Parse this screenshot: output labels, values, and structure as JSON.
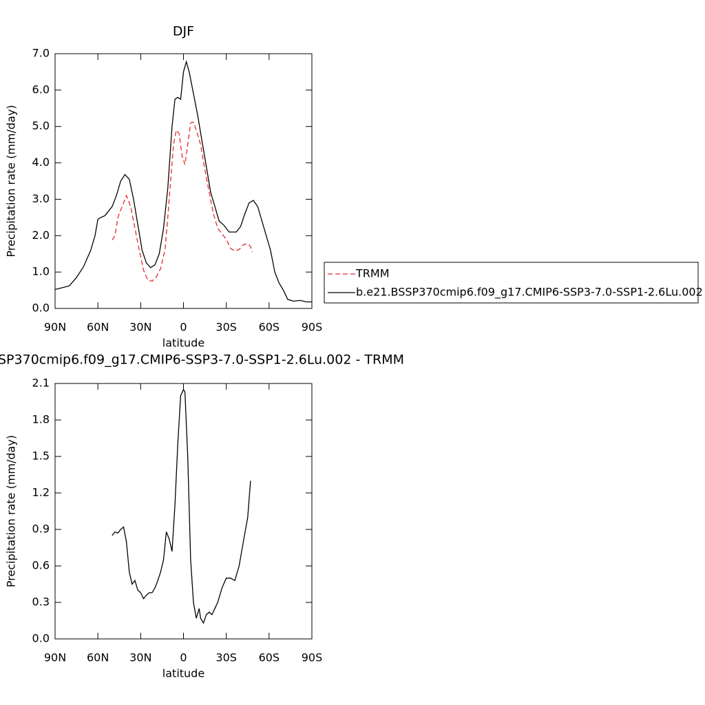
{
  "chart_data": [
    {
      "type": "line",
      "title": "DJF",
      "xlabel": "latitude",
      "ylabel": "Precipitation rate (mm/day)",
      "xlim": [
        90,
        -90
      ],
      "ylim": [
        0,
        7
      ],
      "xticks": [
        {
          "value": 90,
          "label": "90N"
        },
        {
          "value": 60,
          "label": "60N"
        },
        {
          "value": 30,
          "label": "30N"
        },
        0,
        {
          "value": -30,
          "label": "30S"
        },
        {
          "value": -60,
          "label": "60S"
        },
        {
          "value": -90,
          "label": "90S"
        }
      ],
      "yticks": [
        {
          "value": 0,
          "label": "0.0"
        },
        {
          "value": 1,
          "label": "1.0"
        },
        {
          "value": 2,
          "label": "2.0"
        },
        {
          "value": 3,
          "label": "3.0"
        },
        {
          "value": 4,
          "label": "4.0"
        },
        {
          "value": 5,
          "label": "5.0"
        },
        {
          "value": 6,
          "label": "6.0"
        },
        {
          "value": 7,
          "label": "7.0"
        }
      ],
      "legend": "right",
      "series": [
        {
          "name": "TRMM",
          "color": "#e8262b",
          "linestyle": "dashed",
          "x": [
            50,
            48,
            46,
            43,
            40,
            37,
            34,
            31,
            28,
            25,
            22,
            19,
            16,
            13,
            11,
            9,
            7,
            5,
            3,
            1,
            -1,
            -3,
            -5,
            -7,
            -9,
            -12,
            -15,
            -18,
            -21,
            -24,
            -27,
            -30,
            -33,
            -36,
            -39,
            -42,
            -45,
            -47,
            -48
          ],
          "values": [
            1.88,
            2.0,
            2.5,
            2.8,
            3.1,
            2.8,
            2.2,
            1.6,
            1.05,
            0.78,
            0.75,
            0.87,
            1.1,
            1.6,
            2.5,
            3.5,
            4.5,
            4.9,
            4.8,
            4.2,
            3.95,
            4.5,
            5.1,
            5.12,
            4.9,
            4.5,
            3.8,
            3.2,
            2.6,
            2.2,
            2.05,
            1.9,
            1.65,
            1.58,
            1.62,
            1.75,
            1.78,
            1.7,
            1.55
          ]
        },
        {
          "name": "b.e21.BSSP370cmip6.f09_g17.CMIP6-SSP3-7.0-SSP1-2.6Lu.002",
          "color": "#000000",
          "linestyle": "solid",
          "x": [
            90,
            85,
            80,
            75,
            70,
            65,
            62,
            60,
            58,
            55,
            50,
            47,
            44,
            41,
            38,
            35,
            32,
            29,
            26,
            23,
            20,
            17,
            14,
            11,
            8,
            6,
            4,
            2,
            0,
            -2,
            -4,
            -7,
            -10,
            -13,
            -16,
            -19,
            -22,
            -25,
            -28,
            -32,
            -37,
            -40,
            -43,
            -46,
            -49,
            -52,
            -55,
            -58,
            -61,
            -64,
            -67,
            -70,
            -73,
            -77,
            -82,
            -86,
            -90
          ],
          "values": [
            0.52,
            0.57,
            0.62,
            0.85,
            1.15,
            1.6,
            2.0,
            2.45,
            2.5,
            2.55,
            2.8,
            3.1,
            3.5,
            3.68,
            3.55,
            3.0,
            2.3,
            1.6,
            1.25,
            1.12,
            1.2,
            1.5,
            2.2,
            3.3,
            5.0,
            5.75,
            5.8,
            5.75,
            6.5,
            6.78,
            6.5,
            5.9,
            5.3,
            4.6,
            3.9,
            3.2,
            2.8,
            2.4,
            2.3,
            2.1,
            2.1,
            2.25,
            2.6,
            2.9,
            2.97,
            2.8,
            2.4,
            2.0,
            1.6,
            1.0,
            0.7,
            0.5,
            0.25,
            0.2,
            0.22,
            0.18,
            0.18
          ]
        }
      ]
    },
    {
      "type": "line",
      "title": "SP370cmip6.f09_g17.CMIP6-SSP3-7.0-SSP1-2.6Lu.002 - TRMM",
      "xlabel": "latitude",
      "ylabel": "Precipitation rate (mm/day)",
      "xlim": [
        90,
        -90
      ],
      "ylim": [
        0,
        2.1
      ],
      "xticks": [
        {
          "value": 90,
          "label": "90N"
        },
        {
          "value": 60,
          "label": "60N"
        },
        {
          "value": 30,
          "label": "30N"
        },
        0,
        {
          "value": -30,
          "label": "30S"
        },
        {
          "value": -60,
          "label": "60S"
        },
        {
          "value": -90,
          "label": "90S"
        }
      ],
      "yticks": [
        {
          "value": 0,
          "label": "0.0"
        },
        0.3,
        0.6,
        0.9,
        1.2,
        1.5,
        1.8,
        2.1
      ],
      "series": [
        {
          "color": "#000000",
          "linestyle": "solid",
          "x": [
            50,
            48,
            46,
            44,
            42,
            40,
            38,
            36,
            34,
            32,
            30,
            28,
            26,
            24,
            22,
            20,
            18,
            16,
            14,
            12,
            10,
            8,
            6,
            4,
            2,
            0,
            -1,
            -3,
            -5,
            -7,
            -9,
            -11,
            -12,
            -14,
            -16,
            -18,
            -20,
            -22,
            -24,
            -27,
            -30,
            -33,
            -36,
            -39,
            -42,
            -45,
            -47
          ],
          "values": [
            0.85,
            0.88,
            0.87,
            0.9,
            0.92,
            0.8,
            0.55,
            0.45,
            0.48,
            0.4,
            0.38,
            0.33,
            0.36,
            0.38,
            0.38,
            0.42,
            0.48,
            0.55,
            0.65,
            0.88,
            0.82,
            0.72,
            1.1,
            1.6,
            2.0,
            2.05,
            2.03,
            1.5,
            0.65,
            0.3,
            0.17,
            0.25,
            0.17,
            0.13,
            0.2,
            0.22,
            0.2,
            0.25,
            0.3,
            0.42,
            0.5,
            0.5,
            0.48,
            0.6,
            0.8,
            1.0,
            1.3
          ]
        }
      ]
    }
  ]
}
